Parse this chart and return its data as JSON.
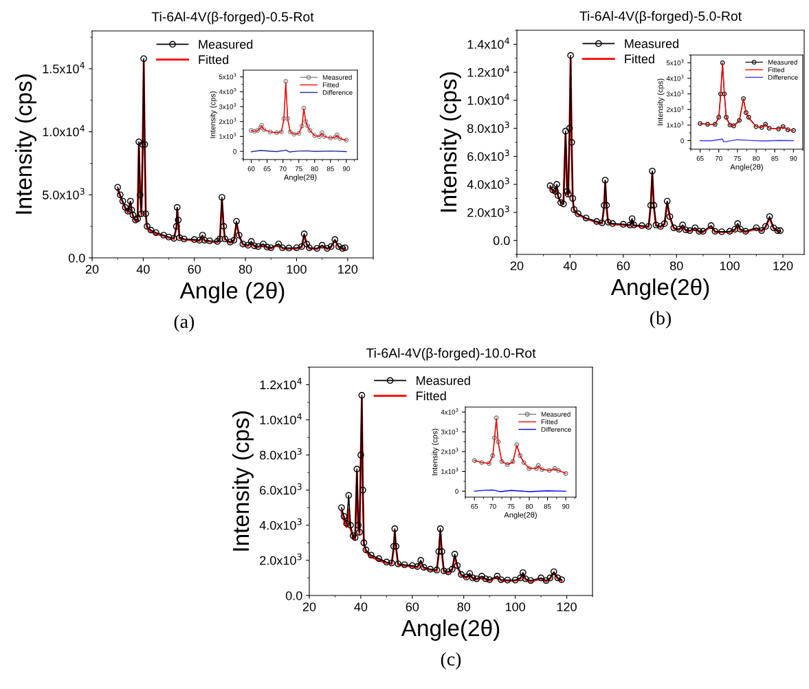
{
  "chart_data": [
    {
      "type": "line",
      "title": "Ti-6Al-4V(β-forged)-0.5-Rot",
      "xlabel": "Angle (2θ)",
      "ylabel": "Intensity (cps)",
      "xlim": [
        20,
        130
      ],
      "ylim": [
        0,
        18000
      ],
      "xticks": [
        20,
        40,
        60,
        80,
        100,
        120
      ],
      "yticks": [
        {
          "value": 0,
          "label": "0.0"
        },
        {
          "value": 5000,
          "label": "5.0x10$^{3}$"
        },
        {
          "value": 10000,
          "label": "1.0x10$^{4}$"
        },
        {
          "value": 15000,
          "label": "1.5x10$^{4}$"
        }
      ],
      "legend": "top left",
      "annotations": [
        "(a)"
      ],
      "series": [
        {
          "name": "Measured",
          "color": "#000000",
          "marker": "circle",
          "x": [
            30,
            31,
            32,
            33,
            34,
            35,
            35.5,
            36,
            37,
            37.8,
            38.3,
            38.8,
            39.3,
            39.8,
            40.2,
            40.6,
            41,
            41.5,
            43,
            45,
            48,
            50,
            52,
            53,
            53.3,
            53.7,
            54.2,
            56,
            60,
            62,
            63.2,
            64,
            66,
            69,
            70,
            70.8,
            71.5,
            72,
            74,
            75.5,
            76.5,
            77.5,
            79,
            81,
            82.3,
            83.5,
            85,
            87,
            88.5,
            90,
            93,
            94.5,
            97,
            100,
            102,
            103,
            104,
            105,
            108,
            110,
            112,
            113.5,
            115,
            116.5,
            118,
            119
          ],
          "values": [
            5600,
            5000,
            4500,
            4000,
            3700,
            4500,
            3800,
            3400,
            3000,
            3100,
            9200,
            5000,
            3500,
            9000,
            15800,
            9000,
            3500,
            2500,
            2200,
            2000,
            1800,
            1650,
            1550,
            2500,
            4000,
            3000,
            1600,
            1500,
            1450,
            1400,
            1800,
            1400,
            1350,
            1300,
            1500,
            4800,
            2500,
            1500,
            1250,
            1400,
            2900,
            1800,
            1100,
            1000,
            1300,
            950,
            900,
            1100,
            850,
            800,
            1100,
            800,
            780,
            800,
            900,
            1900,
            1100,
            800,
            750,
            1000,
            750,
            900,
            1450,
            900,
            750,
            800
          ]
        },
        {
          "name": "Fitted",
          "color": "#ff0000",
          "marker": "none",
          "x": [
            30,
            31,
            32,
            33,
            34,
            35,
            35.5,
            36,
            37,
            37.8,
            38.3,
            38.8,
            39.3,
            39.8,
            40.2,
            40.6,
            41,
            41.5,
            43,
            45,
            48,
            50,
            52,
            53,
            53.3,
            53.7,
            54.2,
            56,
            60,
            62,
            63.2,
            64,
            66,
            69,
            70,
            70.8,
            71.5,
            72,
            74,
            75.5,
            76.5,
            77.5,
            79,
            81,
            82.3,
            83.5,
            85,
            87,
            88.5,
            90,
            93,
            94.5,
            97,
            100,
            102,
            103,
            104,
            105,
            108,
            110,
            112,
            113.5,
            115,
            116.5,
            118,
            119
          ],
          "values": [
            5400,
            4900,
            4400,
            3900,
            3600,
            4400,
            3700,
            3300,
            2900,
            3000,
            9000,
            4900,
            3400,
            8800,
            15600,
            8800,
            3400,
            2400,
            2100,
            1900,
            1750,
            1600,
            1500,
            2400,
            3900,
            2900,
            1550,
            1450,
            1400,
            1350,
            1700,
            1350,
            1300,
            1250,
            1450,
            4600,
            2400,
            1450,
            1200,
            1350,
            2800,
            1750,
            1050,
            950,
            1250,
            900,
            850,
            1050,
            800,
            750,
            1050,
            750,
            730,
            750,
            850,
            1800,
            1050,
            750,
            700,
            950,
            700,
            850,
            1400,
            850,
            700,
            750
          ]
        }
      ]
    },
    {
      "type": "line",
      "xlabel": "Angle(2θ)",
      "ylabel": "Intensity (cps)",
      "xlim": [
        57.5,
        93.5
      ],
      "ylim": [
        -550,
        5450
      ],
      "xticks": [
        60,
        65,
        70,
        75,
        80,
        85,
        90
      ],
      "yticks": [
        0,
        {
          "value": 1000,
          "label": "1x10$^{3}$"
        },
        {
          "value": 2000,
          "label": "2x10$^{3}$"
        },
        {
          "value": 3000,
          "label": "3x10$^{3}$"
        },
        {
          "value": 4000,
          "label": "4x10$^{3}$"
        },
        {
          "value": 5000,
          "label": "5x10$^{3}$"
        }
      ],
      "legend": "top right",
      "series": [
        {
          "name": "Measured",
          "color": "#8c8c8c",
          "marker": "circle",
          "x": [
            60,
            61,
            62,
            63,
            63.3,
            64,
            66,
            68,
            69.5,
            70.3,
            70.9,
            71.5,
            72.3,
            73.5,
            75,
            76,
            76.6,
            77.2,
            77.8,
            78.5,
            80,
            81.5,
            82.3,
            83,
            85,
            86.5,
            87.1,
            88,
            90
          ],
          "values": [
            1400,
            1350,
            1400,
            1600,
            1750,
            1450,
            1300,
            1250,
            1300,
            2200,
            4700,
            2200,
            1300,
            1150,
            1200,
            1700,
            2900,
            2000,
            1700,
            1400,
            1050,
            1000,
            1250,
            1000,
            900,
            950,
            1100,
            850,
            750
          ]
        },
        {
          "name": "Fitted",
          "color": "#ff0000",
          "marker": "none",
          "x": [
            60,
            61,
            62,
            63,
            63.3,
            64,
            66,
            68,
            69.5,
            70.3,
            70.9,
            71.5,
            72.3,
            73.5,
            75,
            76,
            76.6,
            77.2,
            77.8,
            78.5,
            80,
            81.5,
            82.3,
            83,
            85,
            86.5,
            87.1,
            88,
            90
          ],
          "values": [
            1380,
            1350,
            1380,
            1580,
            1700,
            1450,
            1300,
            1250,
            1300,
            2150,
            4600,
            2150,
            1300,
            1150,
            1200,
            1650,
            2850,
            2000,
            1650,
            1400,
            1050,
            1000,
            1200,
            1000,
            900,
            950,
            1050,
            850,
            750
          ]
        },
        {
          "name": "Difference",
          "color": "#1f2a9a",
          "marker": "none",
          "x": [
            60,
            63,
            65,
            68,
            71,
            72,
            75,
            78,
            80,
            85,
            90
          ],
          "values": [
            -30,
            60,
            30,
            -20,
            80,
            -40,
            20,
            30,
            -10,
            20,
            -20
          ]
        }
      ]
    },
    {
      "type": "line",
      "title": "Ti-6Al-4V(β-forged)-5.0-Rot",
      "xlabel": "Angle(2θ)",
      "ylabel": "Intensity (cps)",
      "xlim": [
        20,
        128
      ],
      "ylim": [
        -1000,
        15000
      ],
      "xticks": [
        20,
        40,
        60,
        80,
        100,
        120
      ],
      "yticks": [
        {
          "value": 0,
          "label": "0.0"
        },
        {
          "value": 2000,
          "label": "2.0x10$^{3}$"
        },
        {
          "value": 4000,
          "label": "4.0x10$^{3}$"
        },
        {
          "value": 6000,
          "label": "6.0x10$^{3}$"
        },
        {
          "value": 8000,
          "label": "8.0x10$^{3}$"
        },
        {
          "value": 10000,
          "label": "1.0x10$^{4}$"
        },
        {
          "value": 12000,
          "label": "1.2x10$^{4}$"
        },
        {
          "value": 14000,
          "label": "1.4x10$^{4}$"
        }
      ],
      "legend": "top left",
      "annotations": [
        "(b)"
      ],
      "series": [
        {
          "name": "Measured",
          "color": "#000000",
          "marker": "circle",
          "x": [
            32.5,
            33.5,
            34.5,
            35,
            35.5,
            36.5,
            37.5,
            38.3,
            38.9,
            39.3,
            39.8,
            40.2,
            40.6,
            41,
            41.5,
            43,
            46,
            50,
            52,
            52.8,
            53.2,
            53.7,
            54.3,
            56,
            60,
            62.5,
            63.3,
            64,
            67,
            69.5,
            70.3,
            70.9,
            71.5,
            72.3,
            74,
            75.5,
            76.5,
            77.5,
            79,
            81,
            82.3,
            83.5,
            85,
            87,
            88.5,
            90,
            93,
            94.5,
            97,
            100,
            102,
            103,
            104,
            106,
            110,
            112,
            113.5,
            115,
            116.5,
            118,
            119
          ],
          "values": [
            3900,
            3600,
            3500,
            4000,
            3200,
            2700,
            2600,
            7800,
            3500,
            3300,
            8000,
            13200,
            7000,
            3000,
            2200,
            1900,
            1600,
            1350,
            1250,
            2500,
            4300,
            2500,
            1300,
            1200,
            1150,
            1100,
            1550,
            1100,
            1050,
            1000,
            2500,
            4950,
            2500,
            1100,
            1000,
            1200,
            2800,
            1700,
            900,
            800,
            1100,
            750,
            700,
            900,
            650,
            650,
            1050,
            650,
            620,
            650,
            800,
            1200,
            800,
            650,
            900,
            700,
            1000,
            1700,
            900,
            700,
            700
          ]
        },
        {
          "name": "Fitted",
          "color": "#ff0000",
          "marker": "none",
          "x": [
            32.5,
            33.5,
            34.5,
            35,
            35.5,
            36.5,
            37.5,
            38.3,
            38.9,
            39.3,
            39.8,
            40.2,
            40.6,
            41,
            41.5,
            43,
            46,
            50,
            52,
            52.8,
            53.2,
            53.7,
            54.3,
            56,
            60,
            62.5,
            63.3,
            64,
            67,
            69.5,
            70.3,
            70.9,
            71.5,
            72.3,
            74,
            75.5,
            76.5,
            77.5,
            79,
            81,
            82.3,
            83.5,
            85,
            87,
            88.5,
            90,
            93,
            94.5,
            97,
            100,
            102,
            103,
            104,
            106,
            110,
            112,
            113.5,
            115,
            116.5,
            118,
            119
          ],
          "values": [
            3800,
            3500,
            3400,
            3900,
            3100,
            2700,
            2600,
            7600,
            3400,
            3200,
            7800,
            13000,
            6800,
            2900,
            2100,
            1850,
            1550,
            1300,
            1200,
            2400,
            4200,
            2400,
            1250,
            1150,
            1100,
            1050,
            1450,
            1050,
            1000,
            950,
            2400,
            4850,
            2400,
            1050,
            950,
            1150,
            2700,
            1650,
            850,
            750,
            1050,
            700,
            650,
            850,
            600,
            600,
            1000,
            600,
            600,
            600,
            750,
            1150,
            750,
            600,
            850,
            650,
            950,
            1600,
            850,
            650,
            650
          ]
        }
      ]
    },
    {
      "type": "line",
      "xlabel": "Angle(2θ)",
      "ylabel": "Intensity (cps)",
      "xlim": [
        62.5,
        92.5
      ],
      "ylim": [
        -550,
        5500
      ],
      "xticks": [
        65,
        70,
        75,
        80,
        85,
        90
      ],
      "yticks": [
        0,
        {
          "value": 1000,
          "label": "1x10$^{3}$"
        },
        {
          "value": 2000,
          "label": "2x10$^{3}$"
        },
        {
          "value": 3000,
          "label": "3x10$^{3}$"
        },
        {
          "value": 4000,
          "label": "4x10$^{3}$"
        },
        {
          "value": 5000,
          "label": "5x10$^{3}$"
        }
      ],
      "legend": "top right",
      "series": [
        {
          "name": "Measured",
          "color": "#202020",
          "marker": "circle",
          "x": [
            65,
            67,
            69,
            70,
            70.5,
            71,
            71.5,
            72,
            73,
            74,
            75.5,
            76.6,
            77.3,
            78,
            80,
            81.5,
            82.5,
            83.5,
            86,
            87.2,
            88.5,
            90
          ],
          "values": [
            1100,
            1050,
            1050,
            1500,
            3000,
            5000,
            3000,
            1500,
            1000,
            950,
            1300,
            2700,
            1800,
            1500,
            900,
            850,
            1050,
            800,
            750,
            900,
            700,
            650
          ]
        },
        {
          "name": "Fitted",
          "color": "#ff0000",
          "marker": "none",
          "x": [
            65,
            67,
            69,
            70,
            70.5,
            71,
            71.5,
            72,
            73,
            74,
            75.5,
            76.6,
            77.3,
            78,
            80,
            81.5,
            82.5,
            83.5,
            86,
            87.2,
            88.5,
            90
          ],
          "values": [
            1100,
            1050,
            1050,
            1450,
            2950,
            4950,
            2950,
            1450,
            1000,
            950,
            1250,
            2650,
            1800,
            1450,
            900,
            850,
            1000,
            800,
            750,
            880,
            700,
            650
          ]
        },
        {
          "name": "Difference",
          "color": "#3a3aff",
          "marker": "none",
          "x": [
            65,
            68,
            71,
            71.3,
            75,
            78,
            82,
            86,
            90
          ],
          "values": [
            0,
            -10,
            100,
            -80,
            60,
            20,
            -20,
            10,
            0
          ]
        }
      ]
    },
    {
      "type": "line",
      "title": "Ti-6Al-4V(β-forged)-10.0-Rot",
      "xlabel": "Angle(2θ)",
      "ylabel": "Intensity (cps)",
      "xlim": [
        20,
        130
      ],
      "ylim": [
        0,
        13000
      ],
      "xticks": [
        20,
        40,
        60,
        80,
        100,
        120
      ],
      "yticks": [
        {
          "value": 0,
          "label": "0.0"
        },
        {
          "value": 2000,
          "label": "2.0x10$^{3}$"
        },
        {
          "value": 4000,
          "label": "4.0x10$^{3}$"
        },
        {
          "value": 6000,
          "label": "6.0x10$^{3}$"
        },
        {
          "value": 8000,
          "label": "8.0x10$^{3}$"
        },
        {
          "value": 10000,
          "label": "1.0x10$^{4}$"
        },
        {
          "value": 12000,
          "label": "1.2x10$^{4}$"
        }
      ],
      "legend": "top left",
      "annotations": [
        "(c)"
      ],
      "series": [
        {
          "name": "Measured",
          "color": "#000000",
          "marker": "circle",
          "x": [
            32.5,
            33.5,
            34.5,
            35.3,
            36,
            37,
            37.8,
            38.5,
            39,
            39.5,
            40,
            40.4,
            40.8,
            41.2,
            42,
            44,
            47,
            50,
            52,
            52.8,
            53.2,
            53.7,
            54.5,
            57,
            60,
            62,
            63.3,
            64.5,
            67,
            69.5,
            70.3,
            70.9,
            71.5,
            72.3,
            74,
            75.5,
            76.5,
            77.5,
            79,
            81,
            82.3,
            83.5,
            85,
            87,
            88.5,
            90,
            93,
            94.5,
            97,
            100,
            102,
            103,
            104,
            106,
            110,
            112,
            113.5,
            115,
            116.5,
            118
          ],
          "values": [
            5000,
            4500,
            4100,
            5700,
            4000,
            3400,
            3300,
            7200,
            4000,
            3600,
            8000,
            11400,
            6000,
            3000,
            2600,
            2300,
            2100,
            1900,
            1850,
            2800,
            3800,
            2800,
            1800,
            1750,
            1700,
            1650,
            2000,
            1600,
            1500,
            1450,
            2500,
            3800,
            2500,
            1400,
            1350,
            1500,
            2350,
            1700,
            1200,
            1050,
            1250,
            1000,
            950,
            1100,
            950,
            900,
            1100,
            900,
            880,
            880,
            1000,
            1300,
            950,
            850,
            1000,
            850,
            1000,
            1350,
            1000,
            900
          ]
        },
        {
          "name": "Fitted",
          "color": "#ff0000",
          "marker": "none",
          "x": [
            32.5,
            33.5,
            34.5,
            35.3,
            36,
            37,
            37.8,
            38.5,
            39,
            39.5,
            40,
            40.4,
            40.8,
            41.2,
            42,
            44,
            47,
            50,
            52,
            52.8,
            53.2,
            53.7,
            54.5,
            57,
            60,
            62,
            63.3,
            64.5,
            67,
            69.5,
            70.3,
            70.9,
            71.5,
            72.3,
            74,
            75.5,
            76.5,
            77.5,
            79,
            81,
            82.3,
            83.5,
            85,
            87,
            88.5,
            90,
            93,
            94.5,
            97,
            100,
            102,
            103,
            104,
            106,
            110,
            112,
            113.5,
            115,
            116.5,
            118
          ],
          "values": [
            4800,
            4300,
            3900,
            4900,
            3800,
            3300,
            3200,
            7000,
            3900,
            3500,
            7800,
            11200,
            5800,
            2900,
            2500,
            2200,
            2000,
            1850,
            1800,
            2700,
            3700,
            2700,
            1750,
            1700,
            1650,
            1600,
            1900,
            1550,
            1450,
            1400,
            2400,
            3700,
            2400,
            1350,
            1300,
            1450,
            2250,
            1650,
            1150,
            1000,
            1200,
            950,
            900,
            1050,
            900,
            850,
            1050,
            850,
            850,
            850,
            950,
            1250,
            900,
            800,
            950,
            800,
            950,
            1300,
            950,
            850
          ]
        }
      ]
    },
    {
      "type": "line",
      "xlabel": "Angle(2θ)",
      "ylabel": "Intensity (cps)",
      "xlim": [
        62.5,
        92.8
      ],
      "ylim": [
        -300,
        4250
      ],
      "xticks": [
        65,
        70,
        75,
        80,
        85,
        90
      ],
      "yticks": [
        0,
        {
          "value": 1000,
          "label": "1x10$^{3}$"
        },
        {
          "value": 2000,
          "label": "2x10$^{3}$"
        },
        {
          "value": 3000,
          "label": "3x10$^{3}$"
        },
        {
          "value": 4000,
          "label": "4x10$^{3}$"
        }
      ],
      "legend": "top right",
      "series": [
        {
          "name": "Measured",
          "color": "#7a7a7a",
          "marker": "circle",
          "x": [
            65,
            67,
            69,
            70,
            70.5,
            71,
            71.5,
            72.5,
            74,
            75.5,
            76.6,
            77.5,
            78.5,
            80,
            82,
            82.5,
            83.5,
            85.5,
            87,
            88,
            90
          ],
          "values": [
            1550,
            1450,
            1400,
            1800,
            2700,
            3700,
            2500,
            1500,
            1350,
            1500,
            2350,
            1800,
            1450,
            1150,
            1150,
            1300,
            1100,
            1050,
            1150,
            1050,
            900
          ]
        },
        {
          "name": "Fitted",
          "color": "#ff0000",
          "marker": "none",
          "x": [
            65,
            67,
            69,
            70,
            70.5,
            71,
            71.5,
            72.5,
            74,
            75.5,
            76.6,
            77.5,
            78.5,
            80,
            82,
            82.5,
            83.5,
            85.5,
            87,
            88,
            90
          ],
          "values": [
            1550,
            1450,
            1400,
            1750,
            2650,
            3650,
            2450,
            1500,
            1350,
            1450,
            2300,
            1800,
            1450,
            1150,
            1150,
            1250,
            1100,
            1050,
            1100,
            1050,
            900
          ]
        },
        {
          "name": "Difference",
          "color": "#0000ff",
          "marker": "none",
          "x": [
            65,
            68,
            70,
            72,
            75,
            80,
            85,
            90
          ],
          "values": [
            0,
            50,
            60,
            -20,
            40,
            -20,
            20,
            0
          ]
        }
      ]
    }
  ]
}
